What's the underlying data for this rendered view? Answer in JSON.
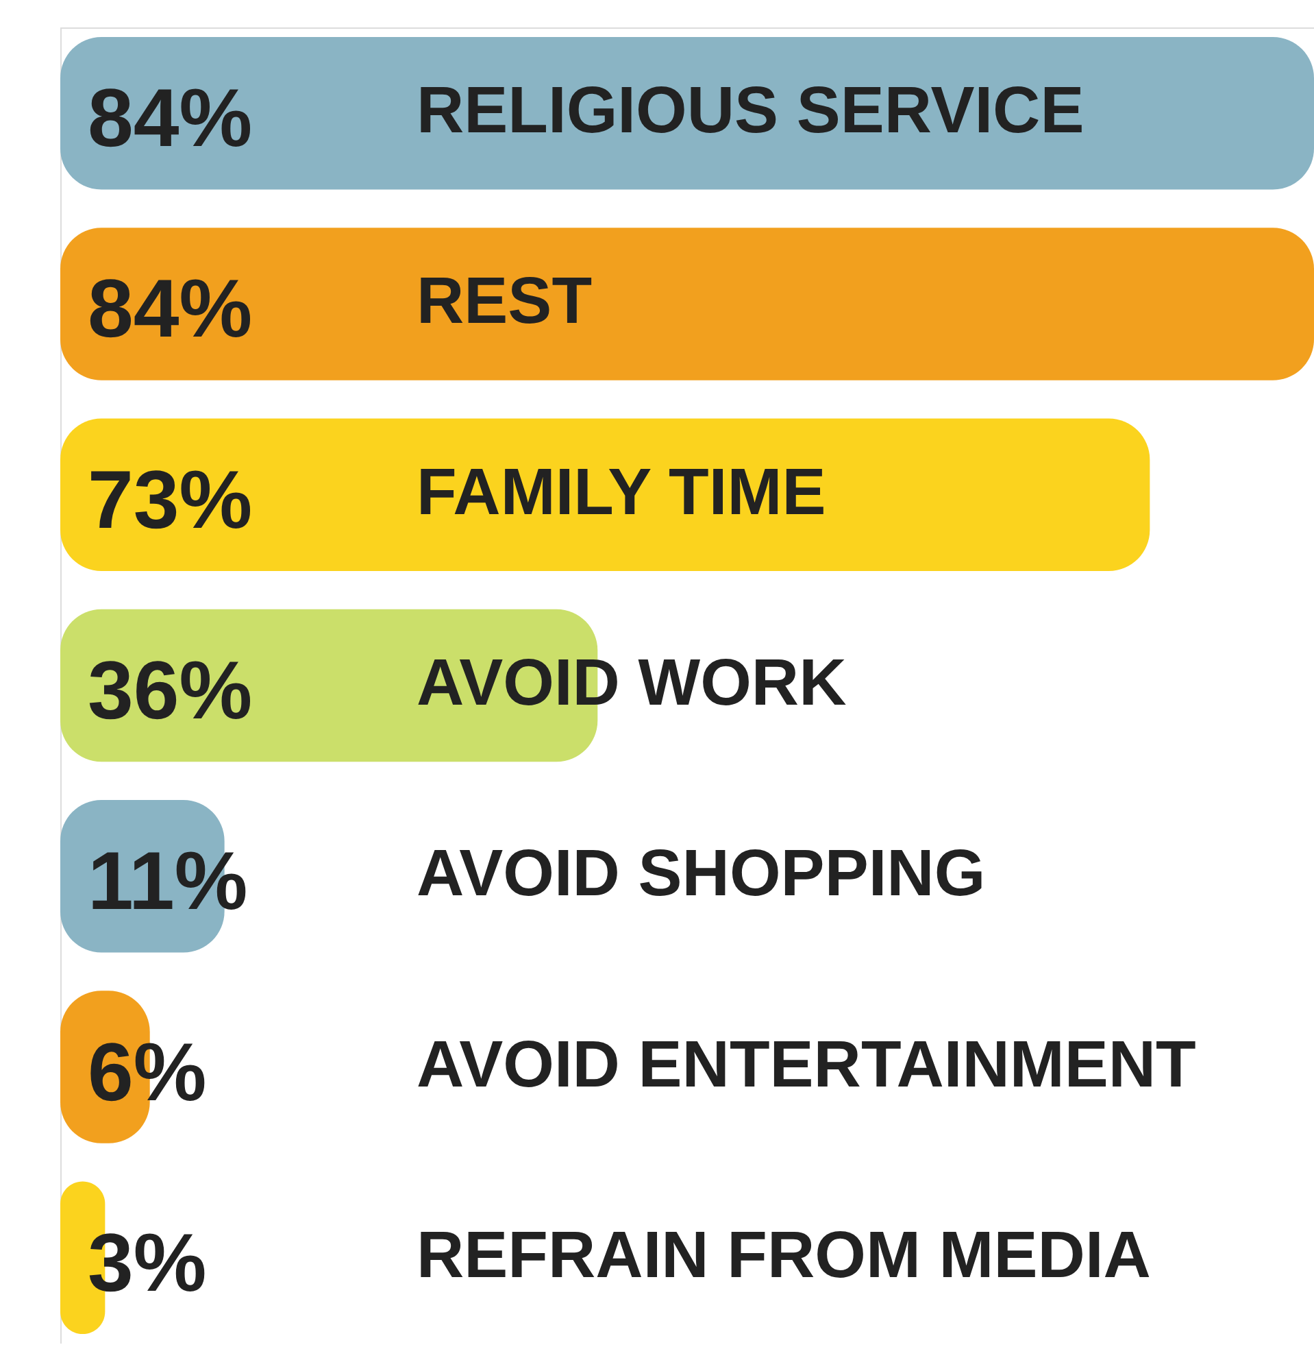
{
  "chart_data": {
    "type": "bar",
    "orientation": "horizontal",
    "categories": [
      "RELIGIOUS SERVICE",
      "REST",
      "FAMILY TIME",
      "AVOID WORK",
      "AVOID SHOPPING",
      "AVOID ENTERTAINMENT",
      "REFRAIN FROM MEDIA"
    ],
    "values": [
      84,
      84,
      73,
      36,
      11,
      6,
      3
    ],
    "value_labels": [
      "84%",
      "84%",
      "73%",
      "36%",
      "11%",
      "6%",
      "3%"
    ],
    "colors": [
      "#8ab4c4",
      "#f2a01e",
      "#fbd31e",
      "#cbdf6a",
      "#8ab4c4",
      "#f2a01e",
      "#fbd31e"
    ],
    "tick_labels": false,
    "grid": false
  }
}
